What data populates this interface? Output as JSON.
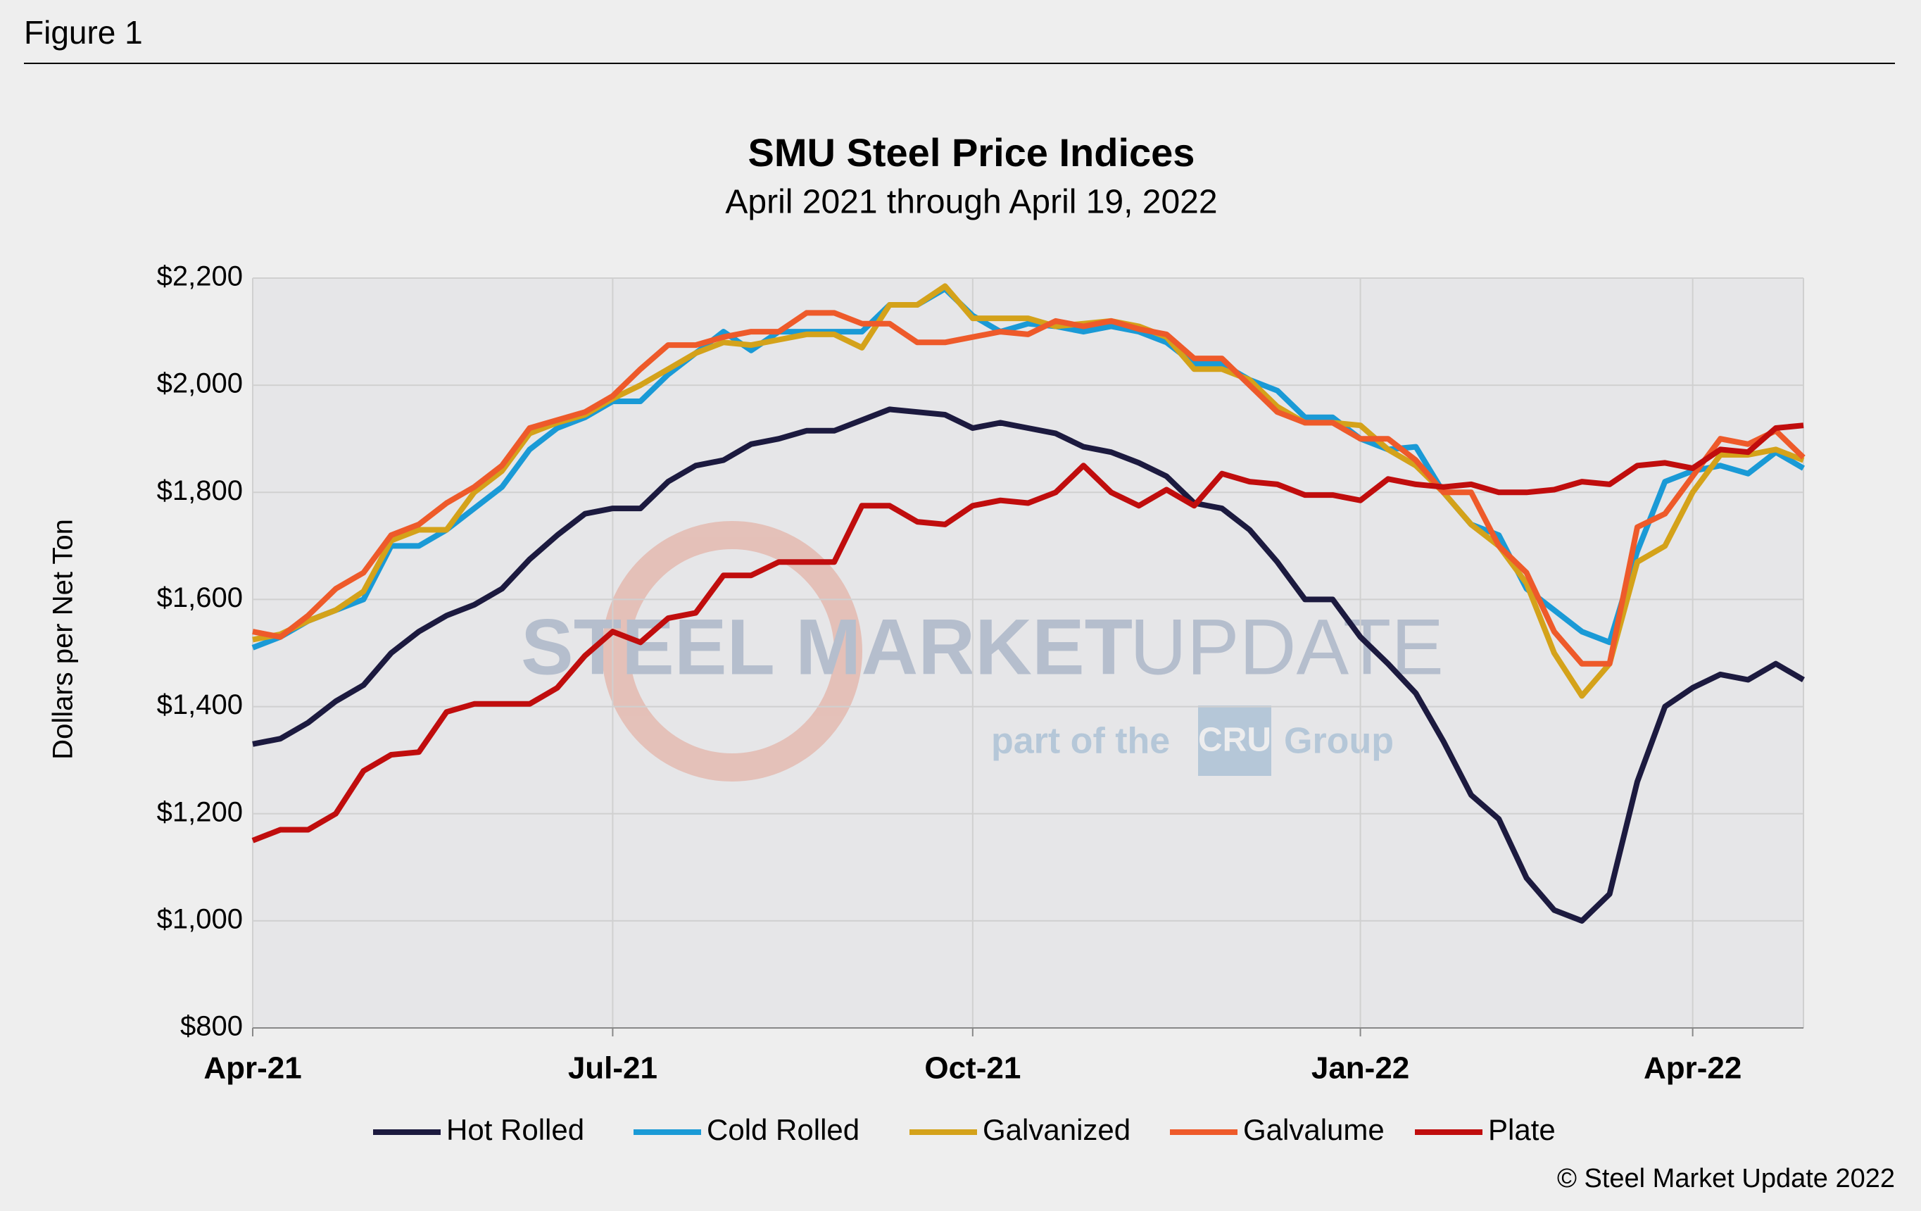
{
  "header": {
    "figure": "Figure 1"
  },
  "chart_data": {
    "type": "line",
    "title": "SMU Steel Price Indices",
    "subtitle": "April 2021 through April 19, 2022",
    "y_label": "Dollars per Net Ton",
    "source": "© Steel Market Update 2022",
    "watermark": {
      "brand": "STEEL MARKET",
      "brand2": "UPDATE",
      "tag": "part of the",
      "logo": "CRU",
      "tag2": "Group"
    },
    "grid": true,
    "legend": "bottom",
    "categories": [
      "Apr-21",
      null,
      null,
      null,
      null,
      null,
      null,
      null,
      null,
      null,
      null,
      null,
      null,
      "Jul-21",
      null,
      null,
      null,
      null,
      null,
      null,
      null,
      null,
      null,
      null,
      null,
      null,
      "Oct-21",
      null,
      null,
      null,
      null,
      null,
      null,
      null,
      null,
      null,
      null,
      null,
      null,
      null,
      "Jan-22",
      null,
      null,
      null,
      null,
      null,
      null,
      null,
      null,
      null,
      null,
      null,
      "Apr-22",
      null,
      null,
      null,
      null
    ],
    "ylim": [
      800,
      2200
    ],
    "yticks": [
      {
        "value": 800,
        "label": "$800"
      },
      {
        "value": 1000,
        "label": "$1,000"
      },
      {
        "value": 1200,
        "label": "$1,200"
      },
      {
        "value": 1400,
        "label": "$1,400"
      },
      {
        "value": 1600,
        "label": "$1,600"
      },
      {
        "value": 1800,
        "label": "$1,800"
      },
      {
        "value": 2000,
        "label": "$2,000"
      },
      {
        "value": 2200,
        "label": "$2,200"
      }
    ],
    "series": [
      {
        "name": "Hot Rolled",
        "color": "#1c1a3f",
        "values": [
          1330,
          1340,
          1370,
          1410,
          1440,
          1500,
          1540,
          1570,
          1590,
          1620,
          1675,
          1720,
          1760,
          1770,
          1770,
          1820,
          1850,
          1860,
          1890,
          1900,
          1915,
          1915,
          1935,
          1955,
          1950,
          1945,
          1920,
          1930,
          1920,
          1910,
          1885,
          1875,
          1855,
          1830,
          1780,
          1770,
          1730,
          1670,
          1600,
          1600,
          1530,
          1480,
          1425,
          1335,
          1235,
          1190,
          1080,
          1020,
          1000,
          1050,
          1260,
          1400,
          1435,
          1460,
          1450,
          1480,
          1450
        ]
      },
      {
        "name": "Cold Rolled",
        "color": "#1a9ad6",
        "values": [
          1510,
          1530,
          1560,
          1580,
          1600,
          1700,
          1700,
          1730,
          1770,
          1810,
          1880,
          1920,
          1940,
          1970,
          1970,
          2020,
          2060,
          2100,
          2065,
          2100,
          2100,
          2100,
          2100,
          2150,
          2150,
          2180,
          2130,
          2100,
          2115,
          2110,
          2100,
          2110,
          2100,
          2080,
          2040,
          2040,
          2010,
          1990,
          1940,
          1940,
          1900,
          1880,
          1885,
          1800,
          1740,
          1720,
          1620,
          1580,
          1540,
          1520,
          1690,
          1820,
          1840,
          1850,
          1835,
          1875,
          1845
        ]
      },
      {
        "name": "Galvanized",
        "color": "#d4a21a",
        "values": [
          1525,
          1535,
          1560,
          1580,
          1615,
          1710,
          1730,
          1730,
          1800,
          1840,
          1910,
          1930,
          1945,
          1975,
          2000,
          2030,
          2060,
          2080,
          2075,
          2085,
          2095,
          2095,
          2070,
          2150,
          2150,
          2185,
          2125,
          2125,
          2125,
          2110,
          2115,
          2120,
          2110,
          2090,
          2030,
          2030,
          2010,
          1960,
          1930,
          1930,
          1925,
          1880,
          1850,
          1800,
          1740,
          1700,
          1630,
          1500,
          1420,
          1480,
          1670,
          1700,
          1800,
          1870,
          1870,
          1880,
          1860
        ]
      },
      {
        "name": "Galvalume",
        "color": "#ee5a2a",
        "values": [
          1540,
          1530,
          1570,
          1620,
          1650,
          1720,
          1740,
          1780,
          1810,
          1850,
          1920,
          1935,
          1950,
          1980,
          2030,
          2075,
          2075,
          2090,
          2100,
          2100,
          2135,
          2135,
          2115,
          2115,
          2080,
          2080,
          2090,
          2100,
          2095,
          2120,
          2110,
          2120,
          2105,
          2095,
          2050,
          2050,
          2000,
          1950,
          1930,
          1930,
          1900,
          1900,
          1860,
          1800,
          1800,
          1700,
          1650,
          1540,
          1480,
          1480,
          1735,
          1760,
          1830,
          1900,
          1890,
          1915,
          1865
        ]
      },
      {
        "name": "Plate",
        "color": "#c00d0d",
        "values": [
          1150,
          1170,
          1170,
          1200,
          1280,
          1310,
          1315,
          1390,
          1405,
          1405,
          1405,
          1435,
          1495,
          1540,
          1520,
          1565,
          1575,
          1645,
          1645,
          1670,
          1670,
          1670,
          1775,
          1775,
          1745,
          1740,
          1775,
          1785,
          1780,
          1800,
          1850,
          1800,
          1775,
          1805,
          1775,
          1835,
          1820,
          1815,
          1795,
          1795,
          1785,
          1825,
          1815,
          1810,
          1815,
          1800,
          1800,
          1805,
          1820,
          1815,
          1850,
          1855,
          1845,
          1880,
          1875,
          1920,
          1925
        ]
      }
    ]
  }
}
